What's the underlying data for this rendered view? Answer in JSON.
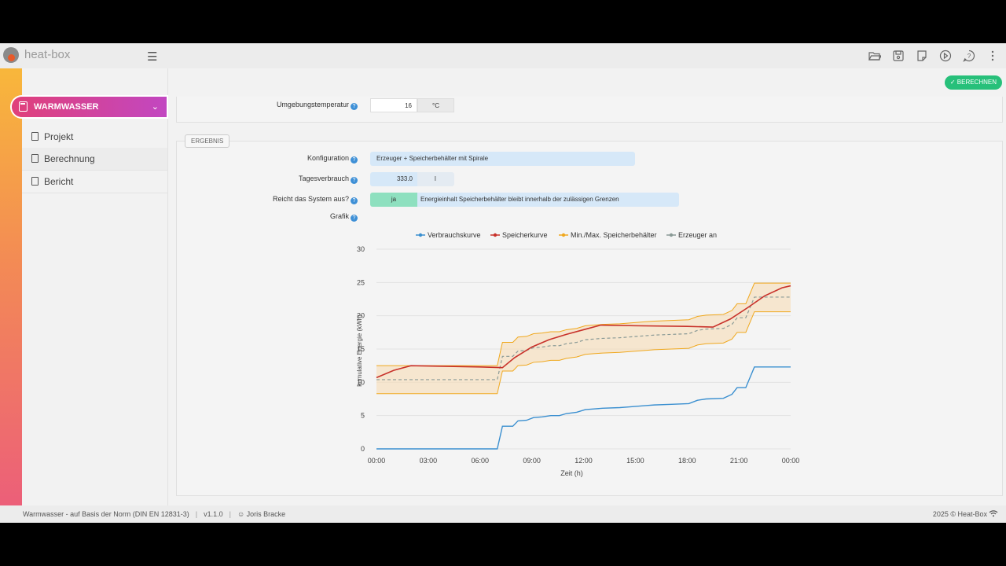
{
  "app": {
    "brand": "heat-box"
  },
  "toolbar_icons": [
    "folder-open-icon",
    "save-icon",
    "notes-icon",
    "play-icon",
    "help-icon",
    "more-vertical-icon"
  ],
  "sidebar": {
    "section": "WARMWASSER",
    "items": [
      {
        "label": "Projekt",
        "icon": "project-icon"
      },
      {
        "label": "Berechnung",
        "icon": "calculator-icon"
      },
      {
        "label": "Bericht",
        "icon": "report-icon"
      }
    ]
  },
  "header": {
    "calc_button": "BERECHNEN"
  },
  "inputs": {
    "ambient_label": "Umgebungstemperatur",
    "ambient_value": "16",
    "ambient_unit": "°C"
  },
  "result": {
    "tab": "ERGEBNIS",
    "config_label": "Konfiguration",
    "config_value": "Erzeuger + Speicherbehälter mit Spirale",
    "daily_label": "Tagesverbrauch",
    "daily_value": "333.0",
    "daily_unit": "l",
    "enough_label": "Reicht das System aus?",
    "enough_value": "ja",
    "enough_text": "Energieinhalt Speicherbehälter bleibt innerhalb der zulässigen Grenzen",
    "graph_label": "Grafik"
  },
  "chart_data": {
    "type": "line",
    "xlabel": "Zeit (h)",
    "ylabel": "kumulative Energie (kWh)",
    "ylim": [
      0,
      30
    ],
    "xlim": [
      0,
      24
    ],
    "x_ticks": [
      "00:00",
      "03:00",
      "06:00",
      "09:00",
      "12:00",
      "15:00",
      "18:00",
      "21:00",
      "00:00"
    ],
    "y_ticks": [
      "0",
      "5",
      "10",
      "15",
      "20",
      "25",
      "30"
    ],
    "legend_position": "top",
    "series": [
      {
        "name": "Verbrauchskurve",
        "color": "#3a8fd0",
        "x": [
          0,
          7,
          7.3,
          7.9,
          8.2,
          8.7,
          9.1,
          9.6,
          10.1,
          10.6,
          11.0,
          11.6,
          12.1,
          12.6,
          13.1,
          14.1,
          14.6,
          15.6,
          16.1,
          17.1,
          18.1,
          18.6,
          19.1,
          20.1,
          20.6,
          20.9,
          21.4,
          21.9,
          24
        ],
        "y": [
          0,
          0,
          3.4,
          3.4,
          4.2,
          4.3,
          4.7,
          4.8,
          5.0,
          5.0,
          5.3,
          5.5,
          5.9,
          6.0,
          6.1,
          6.2,
          6.3,
          6.5,
          6.6,
          6.7,
          6.8,
          7.3,
          7.5,
          7.6,
          8.2,
          9.2,
          9.2,
          12.3,
          12.3
        ]
      },
      {
        "name": "Speicherkurve",
        "color": "#c8312a",
        "x": [
          0,
          1,
          2,
          6,
          7.3,
          8,
          9,
          10,
          11,
          12,
          13,
          15,
          18,
          19.5,
          20.5,
          21.5,
          22.5,
          23.5,
          24
        ],
        "y": [
          10.7,
          11.8,
          12.5,
          12.3,
          12.2,
          13.7,
          15.3,
          16.4,
          17.2,
          17.9,
          18.6,
          18.5,
          18.4,
          18.3,
          19.5,
          21.2,
          23.0,
          24.2,
          24.5
        ]
      },
      {
        "name": "Min./Max. Speicherbehälter",
        "color": "#f0a81e",
        "x": [
          0,
          7,
          7.3,
          7.9,
          8.2,
          8.7,
          9.1,
          9.6,
          10.1,
          10.6,
          11.0,
          11.6,
          12.1,
          12.6,
          13.1,
          14.1,
          14.6,
          15.6,
          16.1,
          17.1,
          18.1,
          18.6,
          19.1,
          20.1,
          20.6,
          20.9,
          21.4,
          21.9,
          24
        ],
        "y_max": [
          12.5,
          12.5,
          16.0,
          16.0,
          16.8,
          16.9,
          17.3,
          17.4,
          17.6,
          17.6,
          17.9,
          18.1,
          18.5,
          18.6,
          18.7,
          18.8,
          18.9,
          19.1,
          19.2,
          19.3,
          19.4,
          19.9,
          20.1,
          20.2,
          20.8,
          21.8,
          21.8,
          24.9,
          24.9
        ],
        "y_min": [
          8.3,
          8.3,
          11.7,
          11.7,
          12.5,
          12.6,
          13.0,
          13.1,
          13.3,
          13.3,
          13.6,
          13.8,
          14.2,
          14.3,
          14.4,
          14.5,
          14.6,
          14.8,
          14.9,
          15.0,
          15.1,
          15.6,
          15.8,
          15.9,
          16.5,
          17.5,
          17.5,
          20.6,
          20.6
        ]
      },
      {
        "name": "Erzeuger an",
        "color": "#8a9a96",
        "x": [
          0,
          7,
          7.3,
          7.9,
          8.2,
          8.7,
          9.1,
          9.6,
          10.1,
          10.6,
          11.0,
          11.6,
          12.1,
          12.6,
          13.1,
          14.1,
          14.6,
          15.6,
          16.1,
          17.1,
          18.1,
          18.6,
          19.1,
          20.1,
          20.6,
          20.9,
          21.4,
          21.9,
          24
        ],
        "y": [
          10.4,
          10.4,
          13.9,
          13.9,
          14.7,
          14.8,
          15.2,
          15.3,
          15.5,
          15.5,
          15.8,
          16.0,
          16.4,
          16.5,
          16.6,
          16.7,
          16.8,
          17.0,
          17.1,
          17.2,
          17.3,
          17.8,
          18.0,
          18.1,
          18.7,
          19.7,
          19.7,
          22.8,
          22.8
        ]
      }
    ]
  },
  "footer": {
    "title": "Warmwasser - auf Basis der Norm (DIN EN 12831-3)",
    "version": "v1.1.0",
    "user": "Joris Bracke",
    "copyright": "2025 © Heat-Box"
  }
}
